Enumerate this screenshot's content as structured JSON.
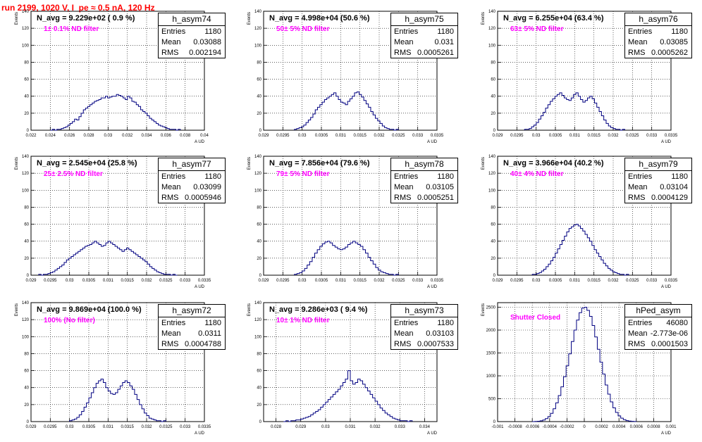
{
  "page_title": "run 2199,  1020 V, I_pe ≈ 0.5 nA, 120 Hz",
  "chart_data": [
    {
      "type": "bar",
      "name": "h_asym74",
      "navg": "N_avg = 9.229e+02 ( 0.9 %)",
      "filter": "1± 0.1% ND filter",
      "stats": {
        "entries": "1180",
        "mean": "0.03088",
        "rms": "0.002194"
      },
      "xlim": [
        0.022,
        0.04
      ],
      "xticks": [
        "0.022",
        "0.024",
        "0.026",
        "0.028",
        "0.03",
        "0.032",
        "0.034",
        "0.036",
        "0.038",
        "0.04"
      ],
      "ylim": [
        0,
        140
      ],
      "yticks": [
        "0",
        "20",
        "40",
        "60",
        "80",
        "100",
        "120",
        "140"
      ],
      "xlabel": "A_UD",
      "ylabel": "Events",
      "bin_range": [
        0.024,
        0.0375
      ],
      "values": [
        0,
        1,
        0,
        1,
        1,
        2,
        3,
        4,
        6,
        8,
        10,
        13,
        12,
        16,
        20,
        24,
        26,
        28,
        30,
        32,
        34,
        35,
        36,
        38,
        38,
        40,
        38,
        39,
        40,
        40,
        42,
        41,
        40,
        38,
        36,
        40,
        38,
        34,
        33,
        30,
        28,
        24,
        22,
        20,
        17,
        14,
        12,
        10,
        8,
        6,
        5,
        4,
        3,
        2,
        1,
        1,
        1,
        0,
        1
      ]
    },
    {
      "type": "bar",
      "name": "h_asym75",
      "navg": "N_avg = 4.998e+04 (50.6 %)",
      "filter": "50± 5% ND filter",
      "stats": {
        "entries": "1180",
        "mean": "0.031",
        "rms": "0.0005261"
      },
      "xlim": [
        0.029,
        0.0335
      ],
      "xticks": [
        "0.029",
        "0.0295",
        "0.03",
        "0.0305",
        "0.031",
        "0.0315",
        "0.032",
        "0.0325",
        "0.033",
        "0.0335"
      ],
      "ylim": [
        0,
        140
      ],
      "yticks": [
        "0",
        "20",
        "40",
        "60",
        "80",
        "100",
        "120",
        "140"
      ],
      "xlabel": "A_UD",
      "ylabel": "Events",
      "bin_range": [
        0.0298,
        0.0325
      ],
      "values": [
        1,
        2,
        3,
        4,
        6,
        9,
        12,
        15,
        19,
        24,
        27,
        30,
        33,
        36,
        38,
        40,
        42,
        44,
        40,
        36,
        33,
        32,
        30,
        34,
        37,
        40,
        44,
        45,
        42,
        39,
        35,
        31,
        27,
        22,
        18,
        14,
        11,
        8,
        5,
        3,
        2,
        1,
        1,
        0,
        1
      ]
    },
    {
      "type": "bar",
      "name": "h_asym76",
      "navg": "N_avg = 6.255e+04 (63.4 %)",
      "filter": "63± 5% ND filter",
      "stats": {
        "entries": "1180",
        "mean": "0.03085",
        "rms": "0.0005262"
      },
      "xlim": [
        0.029,
        0.0335
      ],
      "xticks": [
        "0.029",
        "0.0295",
        "0.03",
        "0.0305",
        "0.031",
        "0.0315",
        "0.032",
        "0.0325",
        "0.033",
        "0.0335"
      ],
      "ylim": [
        0,
        140
      ],
      "yticks": [
        "0",
        "20",
        "40",
        "60",
        "80",
        "100",
        "120",
        "140"
      ],
      "xlabel": "A_UD",
      "ylabel": "Events",
      "bin_range": [
        0.0297,
        0.0323
      ],
      "values": [
        1,
        1,
        2,
        4,
        6,
        9,
        13,
        17,
        21,
        26,
        30,
        34,
        37,
        40,
        42,
        44,
        41,
        38,
        36,
        35,
        38,
        42,
        44,
        40,
        36,
        33,
        35,
        38,
        40,
        37,
        32,
        27,
        22,
        17,
        12,
        8,
        5,
        3,
        2,
        1,
        1,
        0,
        1
      ]
    },
    {
      "type": "bar",
      "name": "h_asym77",
      "navg": "N_avg = 2.545e+04 (25.8 %)",
      "filter": "25± 2.5% ND filter",
      "stats": {
        "entries": "1180",
        "mean": "0.03099",
        "rms": "0.0005946"
      },
      "xlim": [
        0.029,
        0.0335
      ],
      "xticks": [
        "0.029",
        "0.0295",
        "0.03",
        "0.0305",
        "0.031",
        "0.0315",
        "0.032",
        "0.0325",
        "0.033",
        "0.0335"
      ],
      "ylim": [
        0,
        140
      ],
      "yticks": [
        "0",
        "20",
        "40",
        "60",
        "80",
        "100",
        "120",
        "140"
      ],
      "xlabel": "A_UD",
      "ylabel": "Events",
      "bin_range": [
        0.0292,
        0.0328
      ],
      "values": [
        1,
        0,
        1,
        1,
        2,
        3,
        4,
        6,
        8,
        10,
        12,
        15,
        18,
        20,
        22,
        24,
        26,
        28,
        30,
        32,
        34,
        35,
        36,
        38,
        40,
        38,
        36,
        34,
        35,
        38,
        40,
        38,
        36,
        34,
        32,
        30,
        28,
        30,
        32,
        30,
        28,
        26,
        24,
        22,
        20,
        18,
        16,
        13,
        10,
        8,
        6,
        4,
        3,
        2,
        1,
        1,
        1,
        0,
        1,
        0
      ]
    },
    {
      "type": "bar",
      "name": "h_asym78",
      "navg": "N_avg = 7.856e+04 (79.6 %)",
      "filter": "79± 5% ND filter",
      "stats": {
        "entries": "1180",
        "mean": "0.03105",
        "rms": "0.0005251"
      },
      "xlim": [
        0.029,
        0.0335
      ],
      "xticks": [
        "0.029",
        "0.0295",
        "0.03",
        "0.0305",
        "0.031",
        "0.0315",
        "0.032",
        "0.0325",
        "0.033",
        "0.0335"
      ],
      "ylim": [
        0,
        140
      ],
      "yticks": [
        "0",
        "20",
        "40",
        "60",
        "80",
        "100",
        "120",
        "140"
      ],
      "xlabel": "A_UD",
      "ylabel": "Events",
      "bin_range": [
        0.0298,
        0.0325
      ],
      "values": [
        1,
        2,
        3,
        5,
        8,
        12,
        16,
        21,
        26,
        30,
        34,
        37,
        39,
        40,
        38,
        35,
        33,
        31,
        30,
        31,
        33,
        36,
        38,
        40,
        38,
        36,
        34,
        30,
        26,
        21,
        17,
        13,
        9,
        6,
        4,
        3,
        2,
        1,
        1,
        0,
        1
      ]
    },
    {
      "type": "bar",
      "name": "h_asym79",
      "navg": "N_avg = 3.966e+04 (40.2 %)",
      "filter": "40± 4% ND filter",
      "stats": {
        "entries": "1180",
        "mean": "0.03104",
        "rms": "0.0004129"
      },
      "xlim": [
        0.029,
        0.0335
      ],
      "xticks": [
        "0.029",
        "0.0295",
        "0.03",
        "0.0305",
        "0.031",
        "0.0315",
        "0.032",
        "0.0325",
        "0.033",
        "0.0335"
      ],
      "ylim": [
        0,
        140
      ],
      "yticks": [
        "0",
        "20",
        "40",
        "60",
        "80",
        "100",
        "120",
        "140"
      ],
      "xlabel": "A_UD",
      "ylabel": "Events",
      "bin_range": [
        0.0299,
        0.0324
      ],
      "values": [
        1,
        1,
        2,
        3,
        5,
        7,
        10,
        13,
        17,
        21,
        26,
        31,
        36,
        41,
        46,
        51,
        55,
        57,
        59,
        60,
        58,
        55,
        52,
        48,
        44,
        40,
        35,
        30,
        26,
        22,
        18,
        14,
        11,
        8,
        6,
        4,
        3,
        2,
        1,
        1,
        0,
        1
      ]
    },
    {
      "type": "bar",
      "name": "h_asym72",
      "navg": "N_avg = 9.869e+04 (100.0 %)",
      "filter": "100% (No filter)",
      "stats": {
        "entries": "1180",
        "mean": "0.0311",
        "rms": "0.0004788"
      },
      "xlim": [
        0.029,
        0.0335
      ],
      "xticks": [
        "0.029",
        "0.0295",
        "0.03",
        "0.0305",
        "0.031",
        "0.0315",
        "0.032",
        "0.0325",
        "0.033",
        "0.0335"
      ],
      "ylim": [
        0,
        140
      ],
      "yticks": [
        "0",
        "20",
        "40",
        "60",
        "80",
        "100",
        "120",
        "140"
      ],
      "xlabel": "A_UD",
      "ylabel": "Events",
      "bin_range": [
        0.03,
        0.0325
      ],
      "values": [
        1,
        2,
        3,
        5,
        8,
        12,
        17,
        22,
        28,
        34,
        40,
        45,
        48,
        50,
        46,
        40,
        36,
        33,
        32,
        34,
        38,
        42,
        46,
        48,
        46,
        42,
        38,
        32,
        26,
        20,
        15,
        10,
        7,
        4,
        3,
        2,
        1,
        1,
        0,
        1
      ]
    },
    {
      "type": "bar",
      "name": "h_asym73",
      "navg": "N_avg = 9.286e+03 ( 9.4 %)",
      "filter": "10± 1% ND filter",
      "stats": {
        "entries": "1180",
        "mean": "0.03103",
        "rms": "0.0007533"
      },
      "xlim": [
        0.0275,
        0.0345
      ],
      "xticks": [
        "0.028",
        "0.029",
        "0.03",
        "0.031",
        "0.032",
        "0.033",
        "0.034"
      ],
      "ylim": [
        0,
        140
      ],
      "yticks": [
        "0",
        "20",
        "40",
        "60",
        "80",
        "100",
        "120",
        "140"
      ],
      "xlabel": "A_UD",
      "ylabel": "Events",
      "bin_range": [
        0.0283,
        0.0335
      ],
      "values": [
        0,
        1,
        0,
        1,
        1,
        2,
        2,
        3,
        4,
        5,
        6,
        8,
        10,
        12,
        14,
        17,
        20,
        23,
        26,
        29,
        32,
        35,
        38,
        42,
        46,
        50,
        60,
        48,
        44,
        46,
        50,
        48,
        44,
        40,
        36,
        32,
        28,
        24,
        20,
        16,
        13,
        10,
        8,
        6,
        4,
        3,
        2,
        1,
        1,
        1,
        0,
        1
      ]
    },
    {
      "type": "bar",
      "name": "hPed_asym",
      "navg": "",
      "filter": "Shutter Closed",
      "stats": {
        "entries": "46080",
        "mean": "-2.773e-06",
        "rms": "0.0001503"
      },
      "xlim": [
        -0.001,
        0.001
      ],
      "xticks": [
        "-0.001",
        "-0.0008",
        "-0.0006",
        "-0.0004",
        "-0.0002",
        "0",
        "0.0002",
        "0.0004",
        "0.0006",
        "0.0008",
        "0.001"
      ],
      "ylim": [
        0,
        2600
      ],
      "yticks": [
        "0",
        "500",
        "1000",
        "1500",
        "2000",
        "2500"
      ],
      "xlabel": "A_UD",
      "ylabel": "Events",
      "bin_range": [
        -0.0006,
        0.0006
      ],
      "values": [
        1,
        3,
        8,
        18,
        35,
        65,
        110,
        180,
        280,
        410,
        570,
        760,
        980,
        1220,
        1480,
        1750,
        2000,
        2220,
        2380,
        2480,
        2500,
        2430,
        2300,
        2100,
        1850,
        1580,
        1300,
        1040,
        800,
        600,
        430,
        300,
        200,
        125,
        75,
        42,
        22,
        11,
        5,
        2
      ]
    }
  ]
}
